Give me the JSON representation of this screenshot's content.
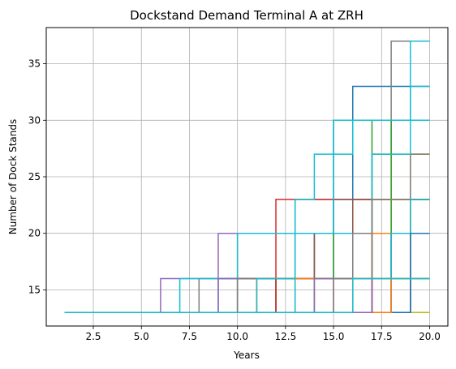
{
  "chart_data": {
    "type": "line",
    "drawstyle": "steps-post",
    "title": "Dockstand Demand Terminal A at ZRH",
    "xlabel": "Years",
    "ylabel": "Number of Dock Stands",
    "xlim": [
      0.05,
      20.95
    ],
    "ylim": [
      11.8,
      38.2
    ],
    "xticks": [
      2.5,
      5.0,
      7.5,
      10.0,
      12.5,
      15.0,
      17.5,
      20.0
    ],
    "xtick_labels": [
      "2.5",
      "5.0",
      "7.5",
      "10.0",
      "12.5",
      "15.0",
      "17.5",
      "20.0"
    ],
    "yticks": [
      15,
      20,
      25,
      30,
      35
    ],
    "ytick_labels": [
      "15",
      "20",
      "25",
      "30",
      "35"
    ],
    "grid": true,
    "series": [
      {
        "color": "#1f77b4",
        "x": [
          1,
          10,
          13,
          16,
          20
        ],
        "y": [
          13,
          16,
          23,
          33,
          33
        ]
      },
      {
        "color": "#ff7f0e",
        "x": [
          1,
          15,
          19,
          20
        ],
        "y": [
          13,
          16,
          27,
          27
        ]
      },
      {
        "color": "#2ca02c",
        "x": [
          1,
          12,
          14,
          17,
          20
        ],
        "y": [
          13,
          16,
          20,
          30,
          30
        ]
      },
      {
        "color": "#d62728",
        "x": [
          1,
          11,
          12,
          18,
          20
        ],
        "y": [
          13,
          16,
          23,
          23,
          23
        ]
      },
      {
        "color": "#9467bd",
        "x": [
          1,
          6,
          9,
          16,
          20
        ],
        "y": [
          13,
          16,
          20,
          20,
          20
        ]
      },
      {
        "color": "#8c564b",
        "x": [
          1,
          11,
          13,
          15,
          20
        ],
        "y": [
          13,
          16,
          20,
          23,
          23
        ]
      },
      {
        "color": "#e377c2",
        "x": [
          1,
          12,
          16,
          20
        ],
        "y": [
          13,
          16,
          16,
          16
        ]
      },
      {
        "color": "#7f7f7f",
        "x": [
          1,
          8,
          10,
          17,
          18,
          20
        ],
        "y": [
          13,
          16,
          20,
          27,
          37,
          37
        ]
      },
      {
        "color": "#bcbd22",
        "x": [
          1,
          13,
          18,
          20
        ],
        "y": [
          13,
          16,
          27,
          27
        ]
      },
      {
        "color": "#17becf",
        "x": [
          1,
          7,
          10,
          13,
          14,
          16,
          19,
          20
        ],
        "y": [
          13,
          16,
          20,
          23,
          27,
          30,
          37,
          37
        ]
      },
      {
        "color": "#1f77b4",
        "x": [
          1,
          9,
          15,
          20
        ],
        "y": [
          13,
          16,
          30,
          30
        ]
      },
      {
        "color": "#ff7f0e",
        "x": [
          1,
          11,
          19,
          20
        ],
        "y": [
          13,
          16,
          20,
          20
        ]
      },
      {
        "color": "#2ca02c",
        "x": [
          1,
          12,
          15,
          18,
          20
        ],
        "y": [
          13,
          16,
          20,
          30,
          30
        ]
      },
      {
        "color": "#d62728",
        "x": [
          1,
          12,
          16,
          20
        ],
        "y": [
          13,
          16,
          23,
          23
        ]
      },
      {
        "color": "#9467bd",
        "x": [
          1,
          9,
          14,
          20
        ],
        "y": [
          13,
          16,
          20,
          20
        ]
      },
      {
        "color": "#8c564b",
        "x": [
          1,
          10,
          14,
          16,
          20
        ],
        "y": [
          13,
          16,
          20,
          23,
          23
        ]
      },
      {
        "color": "#e377c2",
        "x": [
          1,
          15,
          20
        ],
        "y": [
          13,
          16,
          16
        ]
      },
      {
        "color": "#7f7f7f",
        "x": [
          1,
          10,
          17,
          19,
          20
        ],
        "y": [
          13,
          16,
          23,
          27,
          27
        ]
      },
      {
        "color": "#bcbd22",
        "x": [
          1,
          14,
          17,
          20
        ],
        "y": [
          13,
          16,
          23,
          23
        ]
      },
      {
        "color": "#17becf",
        "x": [
          1,
          11,
          13,
          17,
          19,
          20
        ],
        "y": [
          13,
          16,
          20,
          27,
          33,
          33
        ]
      },
      {
        "color": "#1f77b4",
        "x": [
          1,
          16,
          17,
          20
        ],
        "y": [
          13,
          16,
          20,
          20
        ]
      },
      {
        "color": "#ff7f0e",
        "x": [
          1,
          13,
          19,
          20
        ],
        "y": [
          13,
          16,
          23,
          23
        ]
      },
      {
        "color": "#2ca02c",
        "x": [
          1,
          14,
          17,
          20
        ],
        "y": [
          13,
          16,
          20,
          20
        ]
      },
      {
        "color": "#d62728",
        "x": [
          1,
          16,
          18,
          20
        ],
        "y": [
          13,
          16,
          20,
          20
        ]
      },
      {
        "color": "#9467bd",
        "x": [
          1,
          14,
          18,
          20
        ],
        "y": [
          13,
          16,
          20,
          20
        ]
      },
      {
        "color": "#8c564b",
        "x": [
          1,
          16,
          19,
          20
        ],
        "y": [
          13,
          16,
          23,
          23
        ]
      },
      {
        "color": "#e377c2",
        "x": [
          1,
          17,
          20
        ],
        "y": [
          13,
          16,
          16
        ]
      },
      {
        "color": "#7f7f7f",
        "x": [
          1,
          15,
          16,
          20
        ],
        "y": [
          13,
          16,
          20,
          20
        ]
      },
      {
        "color": "#bcbd22",
        "x": [
          1,
          19,
          20
        ],
        "y": [
          13,
          16,
          16
        ]
      },
      {
        "color": "#17becf",
        "x": [
          1,
          13,
          15,
          20
        ],
        "y": [
          13,
          20,
          30,
          30
        ]
      },
      {
        "color": "#1f77b4",
        "x": [
          1,
          18,
          20
        ],
        "y": [
          13,
          16,
          16
        ]
      },
      {
        "color": "#ff7f0e",
        "x": [
          1,
          17,
          20
        ],
        "y": [
          13,
          20,
          20
        ]
      },
      {
        "color": "#2ca02c",
        "x": [
          1,
          18,
          20
        ],
        "y": [
          13,
          20,
          20
        ]
      },
      {
        "color": "#d62728",
        "x": [
          1,
          18,
          20
        ],
        "y": [
          13,
          16,
          16
        ]
      },
      {
        "color": "#9467bd",
        "x": [
          1,
          18,
          20
        ],
        "y": [
          13,
          20,
          20
        ]
      },
      {
        "color": "#8c564b",
        "x": [
          1,
          17,
          20
        ],
        "y": [
          13,
          16,
          16
        ]
      },
      {
        "color": "#e377c2",
        "x": [
          1,
          18,
          20
        ],
        "y": [
          13,
          16,
          16
        ]
      },
      {
        "color": "#7f7f7f",
        "x": [
          1,
          17,
          20
        ],
        "y": [
          13,
          23,
          23
        ]
      },
      {
        "color": "#bcbd22",
        "x": [
          1,
          20
        ],
        "y": [
          13,
          13
        ]
      },
      {
        "color": "#17becf",
        "x": [
          1,
          18,
          20
        ],
        "y": [
          13,
          20,
          20
        ]
      },
      {
        "color": "#1f77b4",
        "x": [
          1,
          19,
          20
        ],
        "y": [
          13,
          16,
          16
        ]
      },
      {
        "color": "#ff7f0e",
        "x": [
          1,
          19,
          20
        ],
        "y": [
          13,
          16,
          16
        ]
      },
      {
        "color": "#2ca02c",
        "x": [
          1,
          19,
          20
        ],
        "y": [
          13,
          16,
          16
        ]
      },
      {
        "color": "#d62728",
        "x": [
          1,
          19,
          20
        ],
        "y": [
          13,
          16,
          16
        ]
      },
      {
        "color": "#9467bd",
        "x": [
          1,
          19,
          20
        ],
        "y": [
          13,
          20,
          20
        ]
      },
      {
        "color": "#8c564b",
        "x": [
          1,
          19,
          20
        ],
        "y": [
          13,
          23,
          23
        ]
      },
      {
        "color": "#e377c2",
        "x": [
          1,
          19,
          20
        ],
        "y": [
          13,
          16,
          16
        ]
      },
      {
        "color": "#7f7f7f",
        "x": [
          1,
          19,
          20
        ],
        "y": [
          13,
          16,
          16
        ]
      },
      {
        "color": "#bcbd22",
        "x": [
          1,
          19,
          20
        ],
        "y": [
          13,
          20,
          20
        ]
      },
      {
        "color": "#17becf",
        "x": [
          1,
          19,
          20
        ],
        "y": [
          13,
          23,
          23
        ]
      },
      {
        "color": "#1f77b4",
        "x": [
          1,
          19,
          20
        ],
        "y": [
          13,
          20,
          20
        ]
      },
      {
        "color": "#ff7f0e",
        "x": [
          1,
          18,
          20
        ],
        "y": [
          13,
          16,
          16
        ]
      },
      {
        "color": "#2ca02c",
        "x": [
          1,
          17,
          20
        ],
        "y": [
          13,
          16,
          16
        ]
      },
      {
        "color": "#d62728",
        "x": [
          1,
          17,
          20
        ],
        "y": [
          13,
          16,
          16
        ]
      },
      {
        "color": "#9467bd",
        "x": [
          1,
          17,
          20
        ],
        "y": [
          13,
          16,
          16
        ]
      },
      {
        "color": "#8c564b",
        "x": [
          1,
          16,
          20
        ],
        "y": [
          13,
          16,
          16
        ]
      },
      {
        "color": "#e377c2",
        "x": [
          1,
          16,
          20
        ],
        "y": [
          13,
          16,
          16
        ]
      },
      {
        "color": "#7f7f7f",
        "x": [
          1,
          16,
          20
        ],
        "y": [
          13,
          16,
          16
        ]
      },
      {
        "color": "#bcbd22",
        "x": [
          1,
          16,
          20
        ],
        "y": [
          13,
          16,
          16
        ]
      },
      {
        "color": "#17becf",
        "x": [
          1,
          16,
          20
        ],
        "y": [
          13,
          16,
          16
        ]
      }
    ]
  }
}
